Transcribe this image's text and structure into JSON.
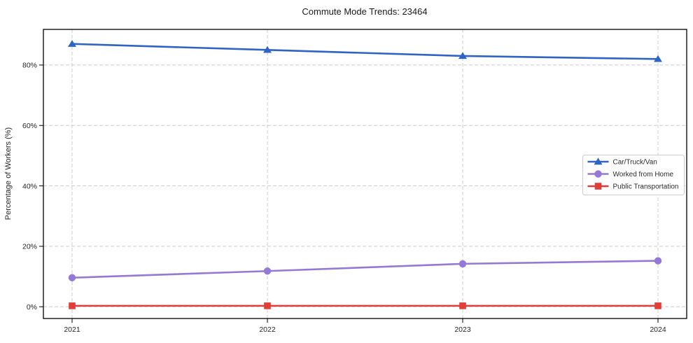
{
  "chart_data": {
    "type": "line",
    "title": "Commute Mode Trends: 23464",
    "xlabel": "",
    "ylabel": "Percentage of Workers (%)",
    "categories": [
      "2021",
      "2022",
      "2023",
      "2024"
    ],
    "series": [
      {
        "name": "Car/Truck/Van",
        "values": [
          87,
          85,
          83,
          82
        ],
        "color": "#2f63c4",
        "marker": "triangle"
      },
      {
        "name": "Worked from Home",
        "values": [
          9.6,
          11.8,
          14.2,
          15.2
        ],
        "color": "#9678d8",
        "marker": "circle"
      },
      {
        "name": "Public Transportation",
        "values": [
          0.3,
          0.3,
          0.3,
          0.3
        ],
        "color": "#e23d38",
        "marker": "square"
      }
    ],
    "yticks": [
      "0%",
      "20%",
      "40%",
      "60%",
      "80%"
    ],
    "ytick_values": [
      0,
      20,
      40,
      60,
      80
    ],
    "ylim": [
      -3.9,
      91.8
    ],
    "grid": true,
    "grid_style": "dashed",
    "grid_color": "#cccccc",
    "spine_color": "#000000",
    "background_color": "#ffffff",
    "legend_position": "right-middle"
  }
}
